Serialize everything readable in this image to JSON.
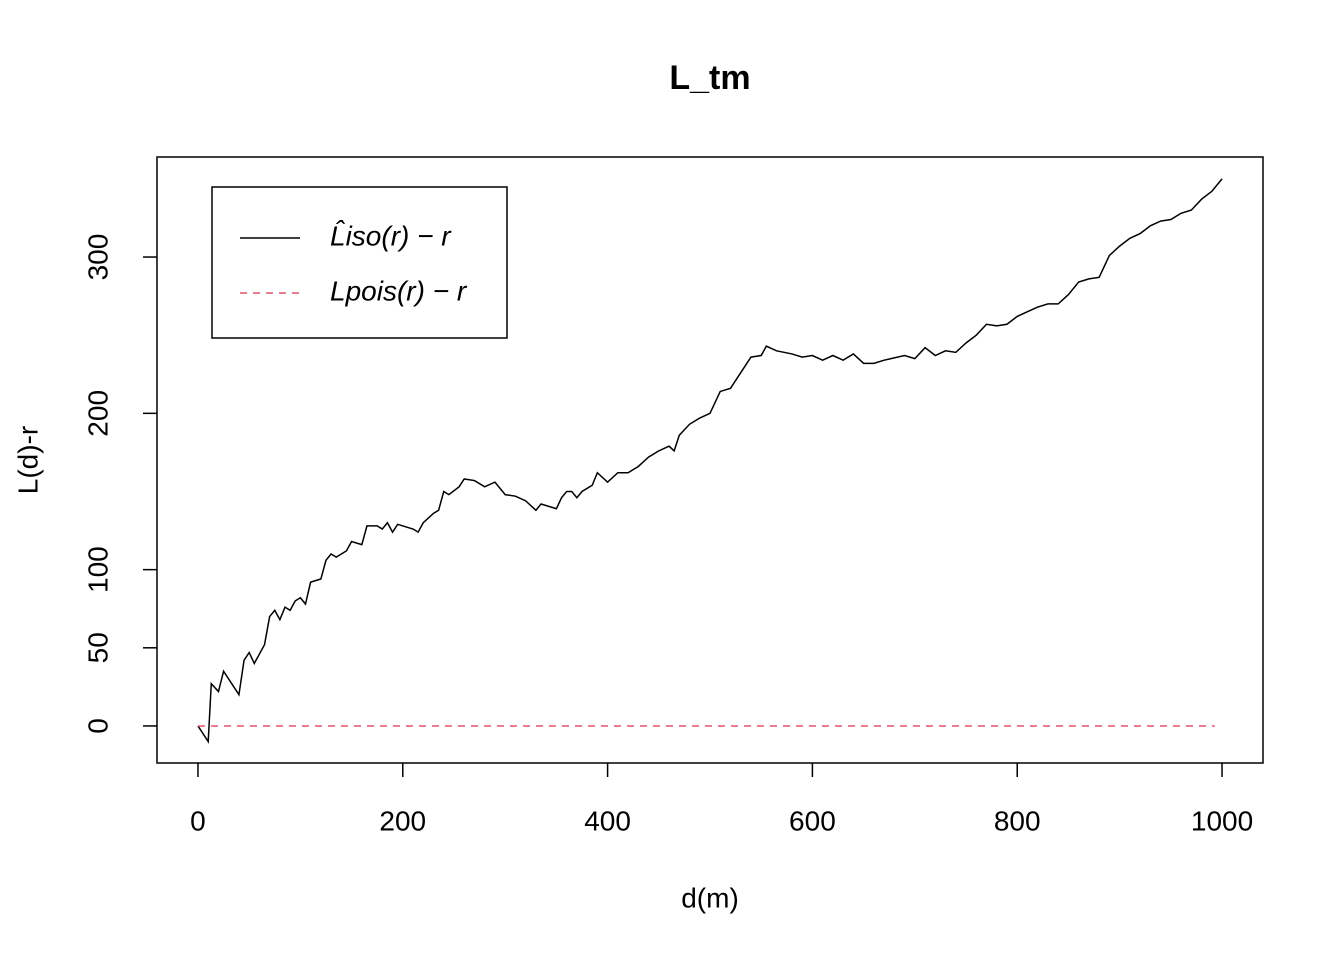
{
  "chart_data": {
    "type": "line",
    "title": "L_tm",
    "x_label": "d(m)",
    "y_label": "L(d)-r",
    "xlim": [
      -40,
      1040
    ],
    "ylim": [
      -23.7,
      364
    ],
    "xticks": [
      0,
      200,
      400,
      600,
      800,
      1000
    ],
    "yticks": [
      0,
      50,
      100,
      200,
      300
    ],
    "legend": "topleft",
    "series": [
      {
        "name": "L̂iso(r) − r",
        "color": "#000000",
        "dash": "solid",
        "x": [
          0,
          10,
          13,
          20,
          25,
          40,
          45,
          50,
          55,
          65,
          70,
          75,
          80,
          85,
          90,
          95,
          100,
          105,
          110,
          120,
          125,
          130,
          135,
          145,
          150,
          160,
          165,
          175,
          180,
          185,
          190,
          195,
          210,
          215,
          220,
          230,
          235,
          240,
          245,
          255,
          260,
          270,
          280,
          290,
          300,
          310,
          320,
          330,
          335,
          345,
          350,
          355,
          360,
          365,
          370,
          375,
          385,
          390,
          400,
          410,
          420,
          430,
          440,
          450,
          460,
          465,
          470,
          480,
          490,
          500,
          510,
          520,
          530,
          540,
          550,
          555,
          565,
          580,
          590,
          600,
          610,
          620,
          630,
          640,
          650,
          660,
          670,
          690,
          700,
          710,
          720,
          730,
          740,
          750,
          760,
          770,
          780,
          790,
          800,
          810,
          820,
          830,
          840,
          850,
          860,
          870,
          880,
          890,
          900,
          910,
          920,
          930,
          940,
          950,
          960,
          970,
          980,
          990,
          1000
        ],
        "values": [
          0,
          -10,
          27,
          22,
          35,
          20,
          42,
          47,
          40,
          52,
          70,
          74,
          68,
          76,
          74,
          80,
          82,
          78,
          92,
          94,
          106,
          110,
          108,
          112,
          118,
          116,
          128,
          128,
          126,
          130,
          124,
          129,
          126,
          124,
          130,
          136,
          138,
          150,
          148,
          153,
          158,
          157,
          153,
          156,
          148,
          147,
          144,
          138,
          142,
          140,
          139,
          146,
          150,
          150,
          146,
          150,
          154,
          162,
          156,
          162,
          162,
          166,
          172,
          176,
          179,
          176,
          186,
          193,
          197,
          200,
          214,
          216,
          226,
          236,
          237,
          243,
          240,
          238,
          236,
          237,
          234,
          237,
          234,
          238,
          232,
          232,
          234,
          237,
          235,
          242,
          237,
          240,
          239,
          245,
          250,
          257,
          256,
          257,
          262,
          265,
          268,
          270,
          270,
          276,
          284,
          286,
          287,
          301,
          307,
          312,
          315,
          320,
          323,
          324,
          328,
          330,
          337,
          342,
          350
        ]
      },
      {
        "name": "Lpois(r) − r",
        "color": "#df536b",
        "dash": "dashed",
        "x": [
          0,
          993
        ],
        "values": [
          0,
          0
        ]
      }
    ]
  }
}
